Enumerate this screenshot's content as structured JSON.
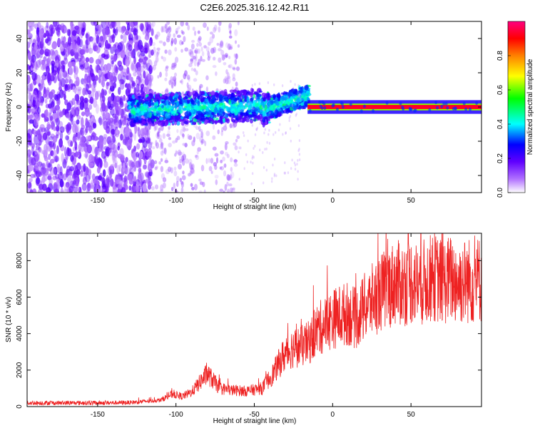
{
  "title": "C2E6.2025.316.12.42.R11",
  "chart_data": [
    {
      "type": "heatmap",
      "name": "spectrogram",
      "xlabel": "Height of straight line (km)",
      "ylabel": "Frequency (Hz)",
      "xlim": [
        -195,
        95
      ],
      "ylim": [
        -50,
        50
      ],
      "xticks": [
        -150,
        -100,
        -50,
        0,
        50
      ],
      "yticks": [
        -40,
        -20,
        0,
        20,
        40
      ],
      "grid": false,
      "colorbar": {
        "label": "Normalized spectral amplitude",
        "range": [
          0,
          1
        ],
        "ticks": [
          "0.0",
          "0.2",
          "0.4",
          "0.6",
          "0.8"
        ],
        "colormap": [
          "#ffffff",
          "#8000ff",
          "#0000ff",
          "#00ffff",
          "#00ff00",
          "#ffff00",
          "#ff8000",
          "#ff0000",
          "#ff0080"
        ]
      },
      "features": [
        {
          "description": "diffuse purple noise",
          "x_range": [
            -195,
            -115
          ],
          "freq_range": [
            -50,
            50
          ],
          "amplitude": 0.1
        },
        {
          "description": "emerging carrier, blue/cyan blobs",
          "x_range": [
            -130,
            -15
          ],
          "freq_range": [
            -10,
            10
          ],
          "amplitude": 0.35
        },
        {
          "description": "strong carrier line",
          "x_range": [
            -15,
            95
          ],
          "freq": 0,
          "amplitude": 1.0
        }
      ]
    },
    {
      "type": "line",
      "name": "snr",
      "xlabel": "Height of straight line (km)",
      "ylabel": "SNR (10 * v/v)",
      "xlim": [
        -195,
        95
      ],
      "ylim": [
        0,
        9500
      ],
      "xticks": [
        -150,
        -100,
        -50,
        0,
        50
      ],
      "yticks": [
        0,
        2000,
        4000,
        6000,
        8000
      ],
      "grid": false,
      "color": "#ee2222",
      "series": [
        {
          "name": "SNR",
          "x": [
            -195,
            -150,
            -130,
            -110,
            -102,
            -96,
            -90,
            -84,
            -80,
            -72,
            -65,
            -55,
            -45,
            -38,
            -32,
            -26,
            -20,
            -15,
            -10,
            -5,
            0,
            5,
            10,
            15,
            20,
            25,
            30,
            35,
            40,
            45,
            50,
            55,
            60,
            65,
            70,
            75,
            80,
            85,
            90,
            95
          ],
          "y": [
            200,
            200,
            220,
            350,
            700,
            550,
            800,
            1400,
            1800,
            1000,
            900,
            850,
            1000,
            1800,
            2700,
            3200,
            3300,
            3500,
            4200,
            4500,
            4800,
            5000,
            5100,
            4800,
            5400,
            5800,
            6200,
            6500,
            6800,
            6700,
            6900,
            6700,
            6900,
            7100,
            6800,
            7000,
            6800,
            6900,
            6900,
            7000
          ]
        }
      ]
    }
  ]
}
